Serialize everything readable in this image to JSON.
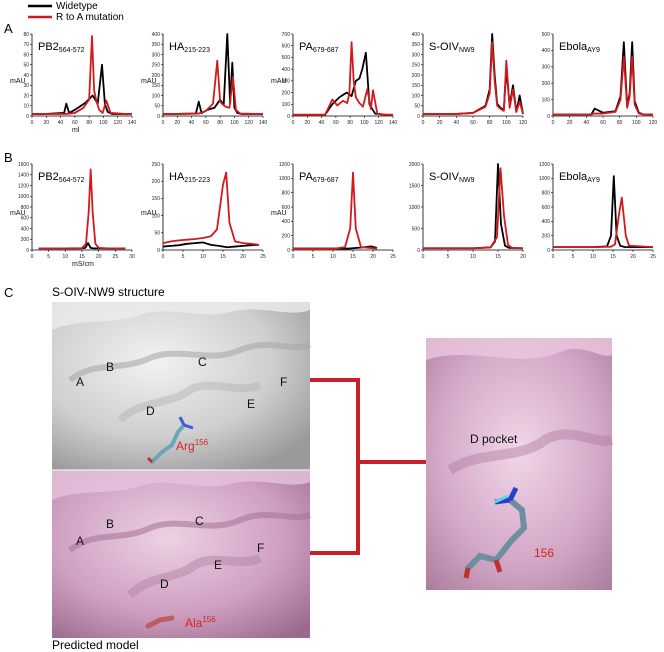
{
  "legend": {
    "items": [
      {
        "label": "Widetype",
        "color": "#000000"
      },
      {
        "label": "R to A mutation",
        "color": "#d2191e"
      }
    ]
  },
  "panels": {
    "A": "A",
    "B": "B",
    "C": "C"
  },
  "colors": {
    "wildtype": "#000000",
    "mutant": "#d2191e",
    "surface_gray": "#d0d0d0",
    "surface_pink": "#d3a6c6",
    "residue_label": "#d92323"
  },
  "chart_data": [
    {
      "type": "line",
      "row": "A",
      "name": "PB2",
      "sub": "564-572",
      "ylabel": "mAU",
      "xlabel": "ml",
      "xlim": [
        0,
        140
      ],
      "ylim": [
        0,
        80
      ],
      "xticks": [
        0,
        20,
        40,
        60,
        80,
        100,
        120,
        140
      ],
      "yticks": [
        0,
        10,
        20,
        30,
        40,
        50,
        60,
        70,
        80
      ],
      "series": [
        {
          "color": "#000000",
          "x": [
            0,
            20,
            45,
            48,
            52,
            60,
            75,
            85,
            92,
            98,
            102,
            106,
            112,
            130,
            140
          ],
          "y": [
            2,
            2,
            3,
            12,
            3,
            6,
            13,
            20,
            12,
            50,
            12,
            4,
            2,
            2,
            2
          ]
        },
        {
          "color": "#d2191e",
          "x": [
            0,
            20,
            48,
            60,
            72,
            80,
            84,
            87,
            90,
            94,
            99,
            104,
            110,
            130,
            140
          ],
          "y": [
            2,
            2,
            2,
            3,
            8,
            16,
            78,
            25,
            15,
            6,
            3,
            15,
            3,
            2,
            2
          ]
        }
      ]
    },
    {
      "type": "line",
      "row": "A",
      "name": "HA",
      "sub": "215-223",
      "ylabel": "mAU",
      "xlabel": "",
      "xlim": [
        0,
        140
      ],
      "ylim": [
        0,
        400
      ],
      "xticks": [
        0,
        20,
        40,
        60,
        80,
        100,
        120,
        140
      ],
      "yticks": [
        0,
        50,
        100,
        150,
        200,
        250,
        300,
        350,
        400
      ],
      "series": [
        {
          "color": "#000000",
          "x": [
            0,
            20,
            46,
            50,
            54,
            62,
            72,
            80,
            85,
            90,
            94,
            97,
            100,
            104,
            110,
            130,
            140
          ],
          "y": [
            10,
            10,
            12,
            70,
            14,
            30,
            40,
            80,
            55,
            400,
            60,
            260,
            40,
            15,
            10,
            10,
            10
          ]
        },
        {
          "color": "#d2191e",
          "x": [
            0,
            20,
            50,
            60,
            70,
            76,
            80,
            84,
            88,
            93,
            98,
            102,
            108,
            130,
            140
          ],
          "y": [
            10,
            10,
            12,
            25,
            60,
            270,
            70,
            55,
            45,
            40,
            190,
            30,
            12,
            10,
            10
          ]
        }
      ]
    },
    {
      "type": "line",
      "row": "A",
      "name": "PA",
      "sub": "679-687",
      "ylabel": "mAU",
      "xlabel": "",
      "xlim": [
        0,
        140
      ],
      "ylim": [
        0,
        700
      ],
      "xticks": [
        0,
        20,
        40,
        60,
        80,
        100,
        120,
        140
      ],
      "yticks": [
        0,
        100,
        200,
        300,
        400,
        500,
        600,
        700
      ],
      "series": [
        {
          "color": "#000000",
          "x": [
            0,
            30,
            45,
            55,
            65,
            75,
            82,
            88,
            93,
            97,
            102,
            107,
            115,
            130,
            140
          ],
          "y": [
            10,
            10,
            12,
            100,
            160,
            200,
            170,
            300,
            320,
            400,
            540,
            100,
            20,
            10,
            10
          ]
        },
        {
          "color": "#d2191e",
          "x": [
            0,
            30,
            45,
            55,
            62,
            70,
            76,
            79,
            82,
            85,
            88,
            93,
            98,
            104,
            109,
            112,
            118,
            130,
            140
          ],
          "y": [
            10,
            10,
            12,
            140,
            90,
            130,
            110,
            200,
            630,
            300,
            160,
            110,
            80,
            230,
            60,
            220,
            20,
            10,
            10
          ]
        }
      ]
    },
    {
      "type": "line",
      "row": "A",
      "name": "S-OIV",
      "sub": "NW9",
      "ylabel": "",
      "xlabel": "",
      "xlim": [
        0,
        120
      ],
      "ylim": [
        0,
        400
      ],
      "xticks": [
        0,
        20,
        40,
        60,
        80,
        100,
        120
      ],
      "yticks": [
        0,
        50,
        100,
        150,
        200,
        250,
        300,
        350,
        400
      ],
      "series": [
        {
          "color": "#000000",
          "x": [
            0,
            40,
            48,
            60,
            75,
            80,
            83,
            86,
            89,
            93,
            97,
            100,
            104,
            108,
            112,
            116,
            120
          ],
          "y": [
            10,
            10,
            12,
            15,
            50,
            130,
            400,
            200,
            60,
            40,
            30,
            230,
            50,
            150,
            20,
            100,
            10
          ]
        },
        {
          "color": "#d2191e",
          "x": [
            0,
            40,
            48,
            60,
            75,
            80,
            83,
            86,
            89,
            93,
            97,
            100,
            104,
            108,
            112,
            116,
            120
          ],
          "y": [
            10,
            10,
            12,
            15,
            45,
            110,
            360,
            170,
            50,
            35,
            25,
            270,
            40,
            130,
            20,
            70,
            10
          ]
        }
      ]
    },
    {
      "type": "line",
      "row": "A",
      "name": "Ebola",
      "sub": "AY9",
      "ylabel": "",
      "xlabel": "",
      "xlim": [
        0,
        120
      ],
      "ylim": [
        0,
        500
      ],
      "xticks": [
        0,
        20,
        40,
        60,
        80,
        100,
        120
      ],
      "yticks": [
        0,
        100,
        200,
        300,
        400,
        500
      ],
      "series": [
        {
          "color": "#000000",
          "x": [
            0,
            40,
            46,
            50,
            60,
            75,
            81,
            85,
            89,
            92,
            95,
            98,
            103,
            108,
            120
          ],
          "y": [
            10,
            10,
            10,
            45,
            20,
            30,
            120,
            450,
            60,
            140,
            450,
            90,
            20,
            10,
            10
          ]
        },
        {
          "color": "#d2191e",
          "x": [
            0,
            40,
            46,
            50,
            60,
            75,
            81,
            85,
            89,
            92,
            95,
            98,
            103,
            108,
            120
          ],
          "y": [
            10,
            10,
            10,
            15,
            15,
            25,
            100,
            360,
            50,
            120,
            360,
            70,
            15,
            10,
            10
          ]
        }
      ]
    },
    {
      "type": "line",
      "row": "B",
      "name": "PB2",
      "sub": "564-572",
      "ylabel": "mAU",
      "xlabel": "mS/cm",
      "xlim": [
        0,
        30
      ],
      "ylim": [
        0,
        1600
      ],
      "xticks": [
        0,
        5,
        10,
        15,
        20,
        25,
        30
      ],
      "yticks": [
        0,
        200,
        400,
        600,
        800,
        1000,
        1200,
        1400,
        1600
      ],
      "series": [
        {
          "color": "#000000",
          "x": [
            2,
            10,
            15,
            16,
            16.8,
            17.6,
            18.4,
            20,
            23,
            28
          ],
          "y": [
            30,
            30,
            30,
            40,
            130,
            40,
            30,
            30,
            30,
            30
          ]
        },
        {
          "color": "#d2191e",
          "x": [
            2,
            10,
            15,
            16.2,
            17,
            17.6,
            18.2,
            19,
            20,
            23,
            28
          ],
          "y": [
            30,
            30,
            35,
            120,
            700,
            1500,
            700,
            120,
            40,
            30,
            30
          ]
        }
      ]
    },
    {
      "type": "line",
      "row": "B",
      "name": "HA",
      "sub": "215-223",
      "ylabel": "mAU",
      "xlabel": "",
      "xlim": [
        0,
        25
      ],
      "ylim": [
        0,
        250
      ],
      "xticks": [
        0,
        5,
        10,
        15,
        20,
        25
      ],
      "yticks": [
        0,
        50,
        100,
        150,
        200,
        250
      ],
      "series": [
        {
          "color": "#000000",
          "x": [
            0,
            2,
            4,
            6,
            8,
            10,
            12,
            14,
            16,
            18,
            20,
            22,
            24
          ],
          "y": [
            10,
            12,
            14,
            18,
            20,
            22,
            15,
            12,
            8,
            10,
            12,
            14,
            15
          ]
        },
        {
          "color": "#d2191e",
          "x": [
            0,
            2,
            4,
            6,
            8,
            10,
            12,
            13.5,
            15,
            15.8,
            16.6,
            18,
            20,
            22,
            24
          ],
          "y": [
            20,
            25,
            28,
            30,
            32,
            35,
            40,
            60,
            190,
            225,
            80,
            25,
            20,
            18,
            15
          ]
        }
      ]
    },
    {
      "type": "line",
      "row": "B",
      "name": "PA",
      "sub": "679-687",
      "ylabel": "mAU",
      "xlabel": "",
      "xlim": [
        0,
        25
      ],
      "ylim": [
        0,
        1200
      ],
      "xticks": [
        0,
        5,
        10,
        15,
        20,
        25
      ],
      "yticks": [
        0,
        200,
        400,
        600,
        800,
        1000,
        1200
      ],
      "series": [
        {
          "color": "#000000",
          "x": [
            0,
            5,
            10,
            14,
            16,
            18,
            19.5,
            21
          ],
          "y": [
            20,
            20,
            20,
            20,
            30,
            40,
            50,
            30
          ]
        },
        {
          "color": "#d2191e",
          "x": [
            0,
            5,
            10,
            13,
            14.3,
            15,
            15.7,
            17,
            19,
            21
          ],
          "y": [
            15,
            15,
            15,
            40,
            300,
            1080,
            300,
            40,
            30,
            20
          ]
        }
      ]
    },
    {
      "type": "line",
      "row": "B",
      "name": "S-OIV",
      "sub": "NW9",
      "ylabel": "",
      "xlabel": "",
      "xlim": [
        0,
        20
      ],
      "ylim": [
        0,
        2000
      ],
      "xticks": [
        0,
        5,
        10,
        15,
        20
      ],
      "yticks": [
        0,
        500,
        1000,
        1500,
        2000
      ],
      "series": [
        {
          "color": "#000000",
          "x": [
            0,
            5,
            10,
            13.5,
            14.4,
            15,
            15.6,
            16.4,
            17.2,
            20
          ],
          "y": [
            40,
            40,
            40,
            60,
            200,
            2000,
            600,
            100,
            50,
            40
          ]
        },
        {
          "color": "#d2191e",
          "x": [
            0,
            5,
            10,
            13.5,
            14.8,
            15.5,
            16.2,
            17,
            17.8,
            20
          ],
          "y": [
            40,
            40,
            40,
            60,
            300,
            1900,
            800,
            120,
            50,
            40
          ]
        }
      ]
    },
    {
      "type": "line",
      "row": "B",
      "name": "Ebola",
      "sub": "AY9",
      "ylabel": "",
      "xlabel": "",
      "xlim": [
        0,
        25
      ],
      "ylim": [
        0,
        1200
      ],
      "xticks": [
        0,
        5,
        10,
        15,
        20,
        25
      ],
      "yticks": [
        0,
        200,
        400,
        600,
        800,
        1000,
        1200
      ],
      "series": [
        {
          "color": "#000000",
          "x": [
            0,
            5,
            10,
            13.5,
            14.5,
            15.2,
            15.9,
            16.8,
            18,
            25
          ],
          "y": [
            40,
            40,
            40,
            50,
            200,
            1030,
            200,
            60,
            40,
            40
          ]
        },
        {
          "color": "#d2191e",
          "x": [
            0,
            5,
            10,
            14.5,
            15.5,
            16.5,
            17.2,
            18.2,
            19,
            25
          ],
          "y": [
            40,
            40,
            40,
            45,
            80,
            500,
            730,
            200,
            60,
            40
          ]
        }
      ]
    }
  ],
  "structure": {
    "title": "S-OIV-NW9 structure",
    "bottom_caption": "Predicted model",
    "top_pockets": [
      "A",
      "B",
      "C",
      "D",
      "E",
      "F"
    ],
    "bottom_pockets": [
      "A",
      "B",
      "C",
      "D",
      "E",
      "F"
    ],
    "top_residue": {
      "name": "Arg",
      "num": "156"
    },
    "bottom_residue": {
      "name": "Ala",
      "num": "156"
    },
    "zoom_pocket": "D  pocket",
    "zoom_residue": "156"
  }
}
